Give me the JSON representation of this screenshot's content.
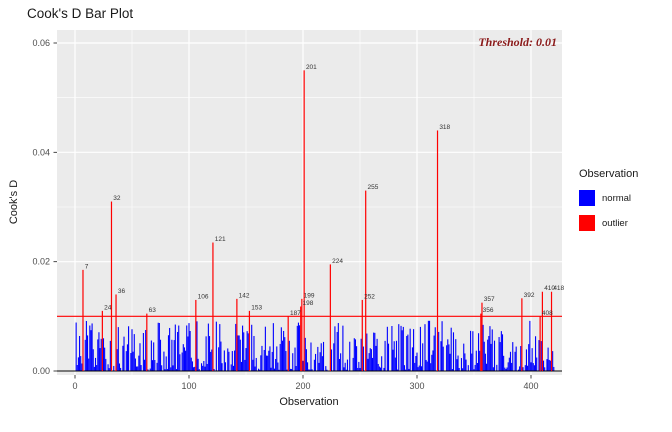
{
  "chart_data": {
    "type": "bar",
    "title": "Cook's D Bar Plot",
    "xlabel": "Observation",
    "ylabel": "Cook's D",
    "threshold": 0.01,
    "threshold_label": "Threshold: 0.01",
    "n_observations": 420,
    "xlim": [
      0,
      420
    ],
    "ylim": [
      0,
      0.06
    ],
    "x_ticks": [
      0,
      100,
      200,
      300,
      400
    ],
    "x_minor_ticks": [
      50,
      150,
      250,
      350
    ],
    "y_ticks": [
      0,
      0.02,
      0.04,
      0.06
    ],
    "y_tick_labels": [
      "0.00",
      "0.02",
      "0.04",
      "0.06"
    ],
    "y_minor_ticks": [
      0.01,
      0.03,
      0.05
    ],
    "grid": true,
    "legend": {
      "title": "Observation",
      "position": "right",
      "entries": [
        {
          "label": "normal",
          "color": "#0000FF"
        },
        {
          "label": "outlier",
          "color": "#FF0000"
        }
      ]
    },
    "colors": {
      "normal": "#0000FF",
      "outlier": "#FF0000",
      "threshold_line": "#FF0000",
      "zero_line": "#000000",
      "panel": "#EBEBEB",
      "grid": "#FFFFFF",
      "tick_text": "#4D4D4D",
      "bar_label": "#333333"
    },
    "normal_bars": {
      "seed": 12345,
      "max_value": 0.0092,
      "exponent": 1.8
    },
    "outliers": [
      {
        "obs": 7,
        "value": 0.0185
      },
      {
        "obs": 24,
        "value": 0.011
      },
      {
        "obs": 32,
        "value": 0.031
      },
      {
        "obs": 36,
        "value": 0.014
      },
      {
        "obs": 63,
        "value": 0.0105
      },
      {
        "obs": 106,
        "value": 0.013
      },
      {
        "obs": 121,
        "value": 0.0235
      },
      {
        "obs": 142,
        "value": 0.0132
      },
      {
        "obs": 153,
        "value": 0.011
      },
      {
        "obs": 187,
        "value": 0.01
      },
      {
        "obs": 198,
        "value": 0.0118
      },
      {
        "obs": 199,
        "value": 0.0132
      },
      {
        "obs": 201,
        "value": 0.055
      },
      {
        "obs": 224,
        "value": 0.0195
      },
      {
        "obs": 252,
        "value": 0.013
      },
      {
        "obs": 255,
        "value": 0.033
      },
      {
        "obs": 318,
        "value": 0.044
      },
      {
        "obs": 356,
        "value": 0.0105
      },
      {
        "obs": 357,
        "value": 0.0125
      },
      {
        "obs": 392,
        "value": 0.0133
      },
      {
        "obs": 408,
        "value": 0.01
      },
      {
        "obs": 410,
        "value": 0.0145
      },
      {
        "obs": 418,
        "value": 0.0145
      }
    ]
  }
}
